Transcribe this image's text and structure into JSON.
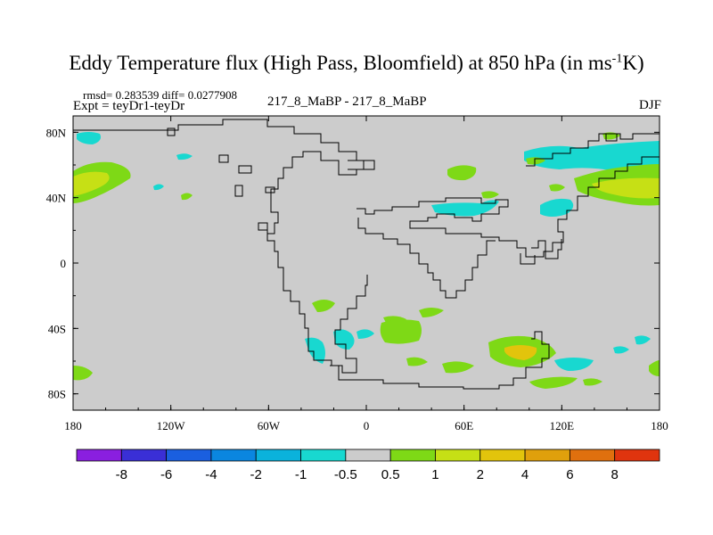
{
  "title": {
    "main": "Eddy Temperature flux (High Pass, Bloomfield) at 850 hPa (in ms",
    "sup": "-1",
    "end": "K)"
  },
  "stats": "rmsd= 0.283539  diff= 0.0277908",
  "expt": "Expt = teyDr1-teyDr",
  "case": "217_8_MaBP - 217_8_MaBP",
  "season": "DJF",
  "axes": {
    "x_ticks": [
      "180",
      "120W",
      "60W",
      "0",
      "60E",
      "120E",
      "180"
    ],
    "y_ticks": [
      "80N",
      "40N",
      "0",
      "40S",
      "80S"
    ]
  },
  "colorbar": {
    "labels": [
      "-8",
      "-6",
      "-4",
      "-2",
      "-1",
      "-0.5",
      "0.5",
      "1",
      "2",
      "4",
      "6",
      "8"
    ],
    "colors": [
      "#8a1fe0",
      "#3a2fd6",
      "#1a5fe0",
      "#0a86e0",
      "#0ab2dc",
      "#18d8d0",
      "#cccccc",
      "#7ed916",
      "#c6e015",
      "#e2c40c",
      "#e0a00c",
      "#e0700e",
      "#e0340e"
    ]
  },
  "map": {
    "background": "#cccccc",
    "patch_colors": {
      "cyan": "#18d8d0",
      "green": "#7ed916",
      "yellow": "#c6e015",
      "gold": "#e2c40c"
    }
  }
}
